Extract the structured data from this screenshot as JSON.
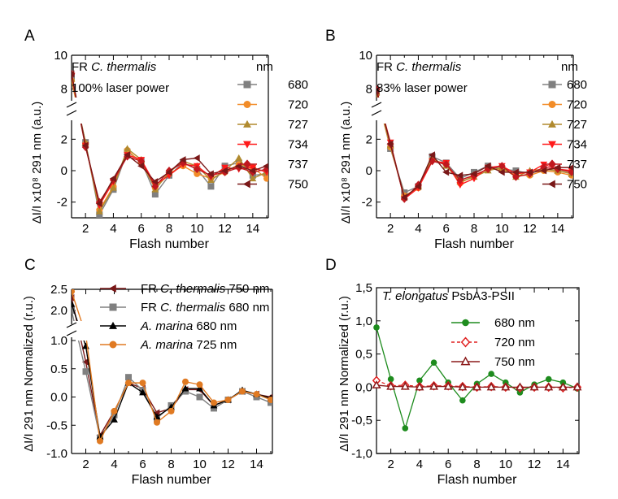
{
  "chart_data": [
    {
      "panel": "A",
      "type": "line",
      "annotation": [
        "FR C. thermalis",
        "100% laser power"
      ],
      "xlabel": "Flash number",
      "ylabel": "ΔI/I x10⁸ 291 nm (a.u.)",
      "xlim": [
        1,
        15
      ],
      "ylim_lower": [
        -3,
        3
      ],
      "ylim_upper": [
        7.5,
        10
      ],
      "legend_title": "nm",
      "legend_position": "right",
      "x": [
        1,
        2,
        3,
        4,
        5,
        6,
        7,
        8,
        9,
        10,
        11,
        12,
        13,
        14,
        15
      ],
      "series": [
        {
          "name": "680",
          "color": "#808080",
          "marker": "square",
          "values": [
            8.7,
            1.8,
            -2.8,
            -1.2,
            1.2,
            0.6,
            -1.5,
            -0.3,
            0.5,
            0.1,
            -1.0,
            0.3,
            0.5,
            -0.3,
            -0.2
          ]
        },
        {
          "name": "720",
          "color": "#f28c28",
          "marker": "circle",
          "values": [
            8.5,
            1.7,
            -2.5,
            -1.0,
            1.3,
            0.5,
            -1.1,
            -0.2,
            0.3,
            -0.2,
            -0.5,
            -0.1,
            0.4,
            0.2,
            -0.5
          ]
        },
        {
          "name": "727",
          "color": "#b08a2e",
          "marker": "triangle-up",
          "values": [
            8.6,
            1.8,
            -2.6,
            -1.1,
            1.4,
            0.7,
            -1.2,
            -0.1,
            0.6,
            0.3,
            -0.6,
            0.0,
            0.8,
            -0.5,
            -0.1
          ]
        },
        {
          "name": "734",
          "color": "#ff1a1a",
          "marker": "triangle-down",
          "values": [
            8.8,
            1.6,
            -2.2,
            -0.7,
            1.0,
            0.7,
            -0.9,
            -0.3,
            0.4,
            0.3,
            -0.4,
            0.2,
            0.1,
            0.2,
            -0.1
          ]
        },
        {
          "name": "737",
          "color": "#c0181e",
          "marker": "diamond",
          "values": [
            8.9,
            1.5,
            -2.0,
            -0.6,
            0.9,
            0.6,
            -1.0,
            0.0,
            0.5,
            0.1,
            -0.3,
            -0.1,
            0.2,
            -0.1,
            0.1
          ]
        },
        {
          "name": "750",
          "color": "#7a1818",
          "marker": "triangle-left",
          "values": [
            8.9,
            1.6,
            -2.1,
            -0.5,
            1.0,
            0.3,
            -0.7,
            -0.1,
            0.7,
            0.8,
            -0.2,
            0.0,
            0.3,
            0.0,
            0.3
          ]
        }
      ]
    },
    {
      "panel": "B",
      "type": "line",
      "annotation": [
        "FR C. thermalis",
        "83% laser power"
      ],
      "xlabel": "Flash number",
      "ylabel": "ΔI/I x10⁸ 291 nm (a.u.)",
      "xlim": [
        1,
        15
      ],
      "ylim_lower": [
        -3,
        3
      ],
      "ylim_upper": [
        7.5,
        10
      ],
      "legend_title": "nm",
      "legend_position": "right",
      "x": [
        1,
        2,
        3,
        4,
        5,
        6,
        7,
        8,
        9,
        10,
        11,
        12,
        13,
        14,
        15
      ],
      "series": [
        {
          "name": "680",
          "color": "#808080",
          "marker": "square",
          "values": [
            7.8,
            1.4,
            -1.4,
            -1.0,
            0.9,
            0.5,
            -0.5,
            -0.1,
            0.3,
            0.1,
            0.0,
            -0.2,
            0.1,
            0.0,
            -0.2
          ]
        },
        {
          "name": "720",
          "color": "#f28c28",
          "marker": "circle",
          "values": [
            7.7,
            1.5,
            -1.6,
            -1.1,
            0.7,
            0.4,
            -0.8,
            -0.3,
            0.1,
            0.1,
            -0.3,
            -0.3,
            0.0,
            -0.1,
            -0.3
          ]
        },
        {
          "name": "727",
          "color": "#b08a2e",
          "marker": "triangle-up",
          "values": [
            7.8,
            1.6,
            -1.7,
            -1.0,
            0.8,
            0.3,
            -0.7,
            -0.4,
            0.0,
            0.2,
            -0.4,
            0.0,
            0.1,
            0.0,
            -0.2
          ]
        },
        {
          "name": "734",
          "color": "#ff1a1a",
          "marker": "triangle-down",
          "values": [
            7.9,
            1.8,
            -1.8,
            -1.1,
            0.6,
            0.5,
            -0.9,
            -0.5,
            0.2,
            0.3,
            -0.2,
            -0.1,
            0.4,
            0.1,
            0.0
          ]
        },
        {
          "name": "737",
          "color": "#c0181e",
          "marker": "diamond",
          "values": [
            8.0,
            1.7,
            -1.8,
            -0.9,
            0.6,
            0.4,
            -0.6,
            -0.3,
            0.1,
            0.3,
            -0.4,
            -0.2,
            0.2,
            0.1,
            -0.1
          ]
        },
        {
          "name": "750",
          "color": "#7a1818",
          "marker": "triangle-left",
          "values": [
            7.9,
            1.7,
            -1.7,
            -1.0,
            1.0,
            -0.1,
            -0.3,
            -0.2,
            0.3,
            -0.1,
            -0.1,
            -0.1,
            0.0,
            0.2,
            0.2
          ]
        }
      ]
    },
    {
      "panel": "C",
      "type": "line",
      "xlabel": "Flash number",
      "ylabel": "ΔI/I 291 nm Normalized (r.u.)",
      "xlim": [
        1,
        15
      ],
      "ylim_lower": [
        -1.0,
        1.0
      ],
      "ylim_upper": [
        1.75,
        2.5
      ],
      "legend_position": "top-right",
      "x": [
        1,
        2,
        3,
        4,
        5,
        6,
        7,
        8,
        9,
        10,
        11,
        12,
        13,
        14,
        15
      ],
      "series": [
        {
          "name_prefix": "FR ",
          "name_italic": "C. thermalis",
          "name_suffix": " 750 nm",
          "color": "#7a1818",
          "marker": "triangle-left",
          "values": [
            2.3,
            0.62,
            -0.68,
            -0.25,
            0.25,
            0.15,
            -0.28,
            -0.2,
            0.13,
            0.13,
            -0.15,
            -0.05,
            0.1,
            0.05,
            0.0
          ]
        },
        {
          "name_prefix": "FR ",
          "name_italic": "C. thermalis",
          "name_suffix": " 680 nm",
          "color": "#808080",
          "marker": "square",
          "values": [
            2.0,
            0.45,
            -0.72,
            -0.32,
            0.35,
            0.12,
            -0.38,
            -0.15,
            0.1,
            0.0,
            -0.2,
            -0.05,
            0.1,
            0.0,
            -0.1
          ]
        },
        {
          "name_prefix": "",
          "name_italic": "A. marina",
          "name_suffix": " 680 nm",
          "color": "#000000",
          "marker": "triangle-up",
          "values": [
            2.15,
            0.9,
            -0.7,
            -0.4,
            0.25,
            0.08,
            -0.35,
            -0.18,
            0.15,
            0.15,
            -0.15,
            -0.05,
            0.12,
            0.05,
            -0.02
          ]
        },
        {
          "name_prefix": "",
          "name_italic": "A. marina",
          "name_suffix": " 725 nm",
          "color": "#e07a22",
          "marker": "circle",
          "values": [
            2.45,
            1.1,
            -0.78,
            -0.25,
            0.25,
            0.25,
            -0.45,
            -0.25,
            0.27,
            0.22,
            -0.1,
            -0.05,
            0.1,
            0.05,
            -0.05
          ]
        }
      ]
    },
    {
      "panel": "D",
      "type": "line",
      "annotation_italic": "T. elongatus",
      "annotation_rest": " PsbA3-PSII",
      "xlabel": "Flash number",
      "ylabel": "ΔI/I 291 nm Normalized (r.u.)",
      "xlim": [
        1,
        15
      ],
      "ylim": [
        -1.0,
        1.5
      ],
      "y_ticks": [
        "-1,0",
        "-0,5",
        "0,0",
        "0,5",
        "1,0",
        "1,5"
      ],
      "legend_position": "top-right",
      "x": [
        1,
        2,
        3,
        4,
        5,
        6,
        7,
        8,
        9,
        10,
        11,
        12,
        13,
        14,
        15
      ],
      "series": [
        {
          "name": "680 nm",
          "color": "#1e8c1e",
          "marker": "circle",
          "line": "solid",
          "values": [
            0.9,
            0.12,
            -0.62,
            0.1,
            0.37,
            0.07,
            -0.2,
            0.05,
            0.2,
            0.07,
            -0.08,
            0.04,
            0.12,
            0.07,
            -0.02
          ]
        },
        {
          "name": "720 nm",
          "color": "#e02020",
          "marker": "diamond-open",
          "line": "dashed",
          "values": [
            0.1,
            0.02,
            0.03,
            0.01,
            0.02,
            0.02,
            0.01,
            0.0,
            0.01,
            0.0,
            -0.01,
            0.0,
            0.0,
            -0.01,
            0.0
          ]
        },
        {
          "name": "750 nm",
          "color": "#8b1a1a",
          "marker": "triangle-open",
          "line": "solid",
          "values": [
            0.03,
            0.01,
            0.01,
            0.0,
            0.01,
            0.01,
            0.0,
            0.0,
            0.0,
            0.0,
            0.0,
            0.0,
            0.0,
            0.0,
            0.0
          ]
        }
      ]
    }
  ]
}
